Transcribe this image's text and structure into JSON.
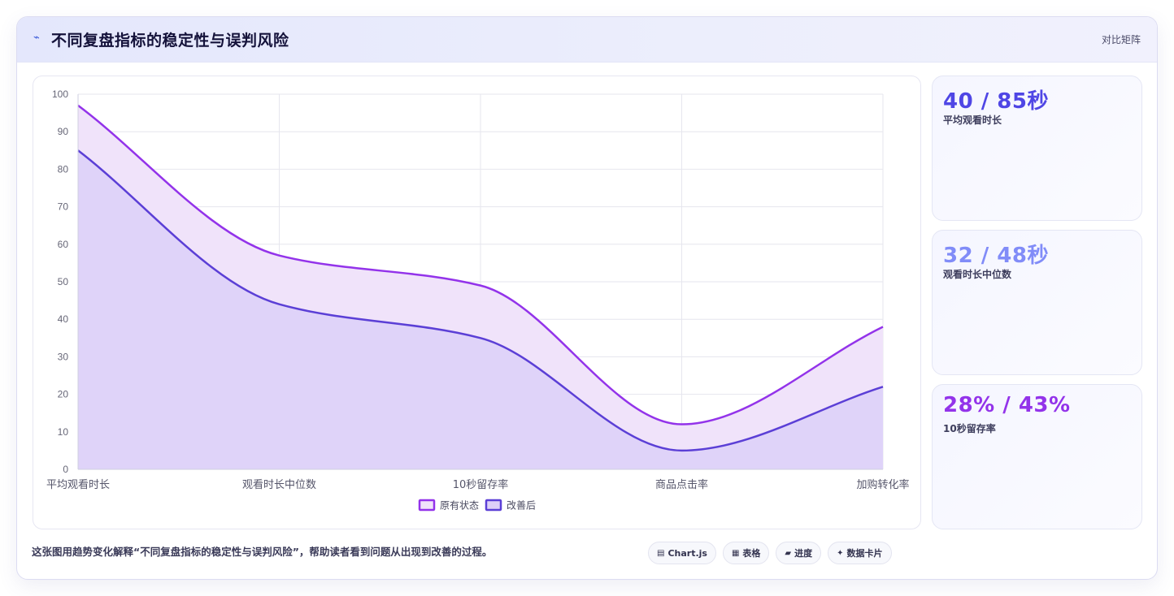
{
  "header": {
    "icon": "line-chart-icon",
    "title": "不同复盘指标的稳定性与误判风险",
    "right_label": "对比矩阵"
  },
  "chart_data": {
    "type": "area",
    "categories": [
      "平均观看时长",
      "观看时长中位数",
      "10秒留存率",
      "商品点击率",
      "加购转化率"
    ],
    "series": [
      {
        "name": "原有状态",
        "values": [
          97,
          57,
          49,
          12,
          38
        ],
        "color": "#9333ea",
        "fill": "#f0e3fa"
      },
      {
        "name": "改善后",
        "values": [
          85,
          44,
          35,
          5,
          22
        ],
        "color": "#5b3fd6",
        "fill": "#ddd0f8"
      }
    ],
    "ylim": [
      0,
      100
    ],
    "yticks": [
      "0",
      "10",
      "20",
      "30",
      "40",
      "50",
      "60",
      "70",
      "80",
      "90",
      "100"
    ],
    "grid": true,
    "legend": "bottom"
  },
  "stats": [
    {
      "value": "40 / 85秒",
      "label": "平均观看时长",
      "color": "#4f46e5"
    },
    {
      "value": "32 / 48秒",
      "label": "观看时长中位数",
      "color": "#818cf8"
    },
    {
      "value": "28% / 43%",
      "label": "10秒留存率",
      "color": "#9333ea"
    }
  ],
  "footer": {
    "text": "这张图用趋势变化解释“不同复盘指标的稳定性与误判风险”，帮助读者看到问题从出现到改善的过程。",
    "chips": [
      {
        "icon": "chart-icon",
        "glyph": "▤",
        "label": "Chart.js"
      },
      {
        "icon": "table-icon",
        "glyph": "▦",
        "label": "表格"
      },
      {
        "icon": "progress-icon",
        "glyph": "▰",
        "label": "进度"
      },
      {
        "icon": "sparkle-icon",
        "glyph": "✦",
        "label": "数据卡片"
      }
    ]
  }
}
